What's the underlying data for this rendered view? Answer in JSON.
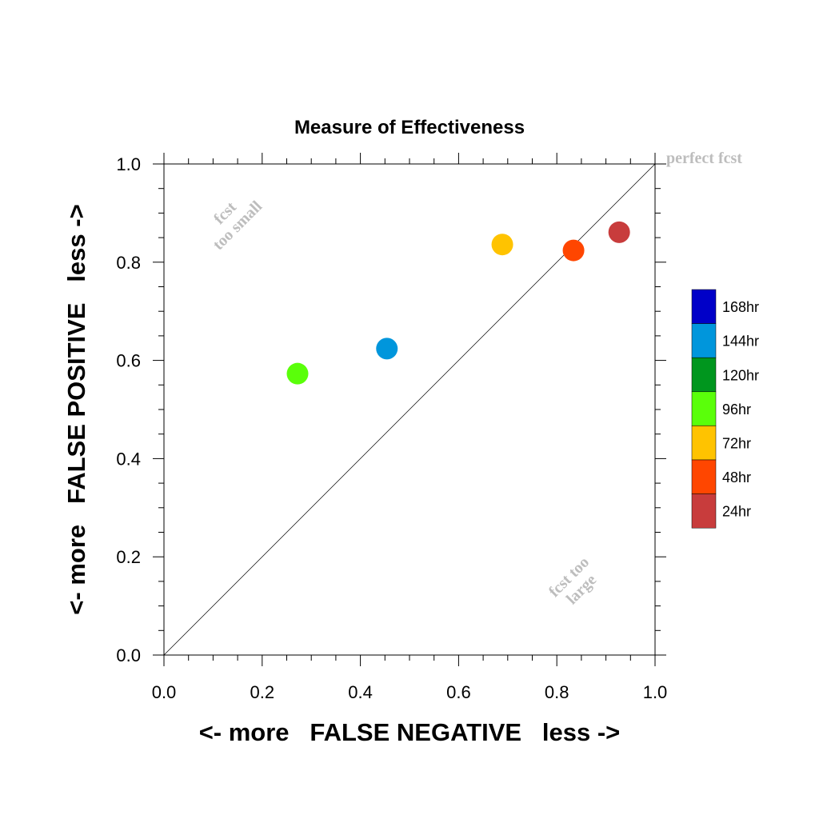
{
  "chart_data": {
    "type": "scatter",
    "title": "Measure of Effectiveness",
    "xlabel": "<- more   FALSE NEGATIVE   less ->",
    "ylabel": "<- more   FALSE POSITIVE   less ->",
    "xlim": [
      0.0,
      1.0
    ],
    "ylim": [
      0.0,
      1.0
    ],
    "xticks": [
      "0.0",
      "0.2",
      "0.4",
      "0.6",
      "0.8",
      "1.0"
    ],
    "yticks": [
      "0.0",
      "0.2",
      "0.4",
      "0.6",
      "0.8",
      "1.0"
    ],
    "grid": false,
    "reference_line": {
      "from": [
        0,
        0
      ],
      "to": [
        1,
        1
      ]
    },
    "annotations": {
      "perfect": "perfect fcst",
      "too_small": [
        "fcst",
        "too small"
      ],
      "too_large": [
        "fcst too",
        "large"
      ]
    },
    "legend_position": "right",
    "legend": [
      {
        "label": "168hr",
        "color": "#0000c8"
      },
      {
        "label": "144hr",
        "color": "#0096dc"
      },
      {
        "label": "120hr",
        "color": "#00961e"
      },
      {
        "label": "96hr",
        "color": "#5aff0a"
      },
      {
        "label": "72hr",
        "color": "#ffc300"
      },
      {
        "label": "48hr",
        "color": "#ff4600"
      },
      {
        "label": "24hr",
        "color": "#c83c3c"
      }
    ],
    "points": [
      {
        "series": "144hr",
        "x": 0.454,
        "y": 0.624,
        "color": "#0096dc"
      },
      {
        "series": "96hr",
        "x": 0.272,
        "y": 0.573,
        "color": "#5aff0a"
      },
      {
        "series": "72hr",
        "x": 0.689,
        "y": 0.836,
        "color": "#ffc300"
      },
      {
        "series": "48hr",
        "x": 0.834,
        "y": 0.824,
        "color": "#ff4600"
      },
      {
        "series": "24hr",
        "x": 0.927,
        "y": 0.861,
        "color": "#c83c3c"
      }
    ]
  }
}
